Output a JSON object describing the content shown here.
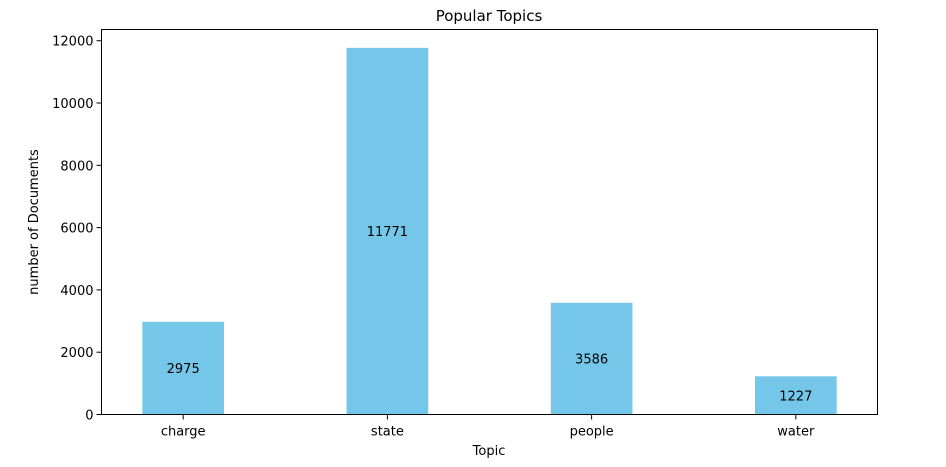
{
  "chart_data": {
    "type": "bar",
    "title": "Popular Topics",
    "xlabel": "Topic",
    "ylabel": "number of Documents",
    "categories": [
      "charge",
      "state",
      "people",
      "water"
    ],
    "values": [
      2975,
      11771,
      3586,
      1227
    ],
    "data_labels": [
      "2975",
      "11771",
      "3586",
      "1227"
    ],
    "ylim": [
      0,
      12360
    ],
    "yticks": [
      0,
      2000,
      4000,
      6000,
      8000,
      10000,
      12000
    ],
    "ytick_labels": [
      "0",
      "2000",
      "4000",
      "6000",
      "8000",
      "10000",
      "12000"
    ],
    "bar_color": "#74c7e8",
    "grid": false,
    "legend": "none"
  }
}
